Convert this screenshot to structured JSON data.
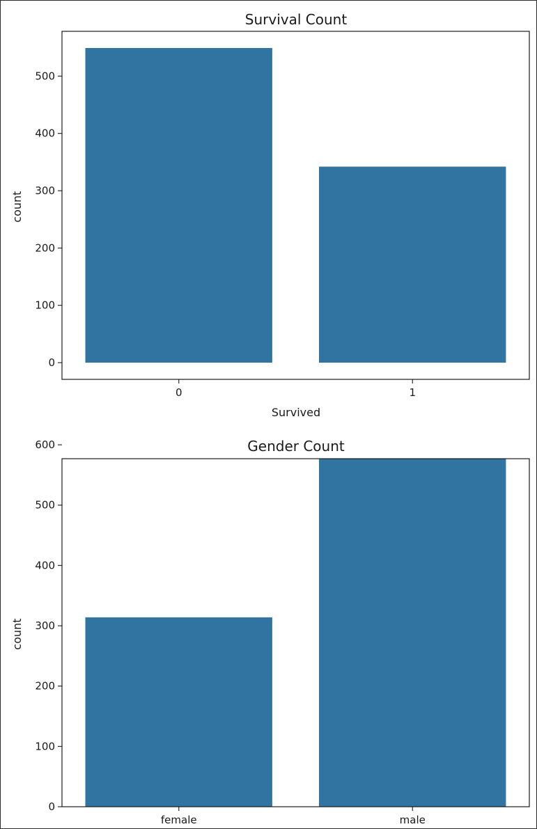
{
  "chart_data": [
    {
      "type": "bar",
      "title": "Survival Count",
      "xlabel": "Survived",
      "ylabel": "count",
      "categories": [
        "0",
        "1"
      ],
      "values": [
        549,
        342
      ],
      "ylim": [
        0,
        549
      ],
      "yticks": [
        "0",
        "100",
        "200",
        "300",
        "400",
        "500"
      ],
      "bar_color": "#3274a1",
      "grid": false
    },
    {
      "type": "bar",
      "title": "Gender Count",
      "xlabel": "",
      "ylabel": "count",
      "categories": [
        "female",
        "male"
      ],
      "values": [
        314,
        577
      ],
      "ylim": [
        0,
        577
      ],
      "yticks": [
        "0",
        "100",
        "200",
        "300",
        "400",
        "500",
        "600"
      ],
      "bar_color": "#3274a1",
      "grid": false
    }
  ]
}
